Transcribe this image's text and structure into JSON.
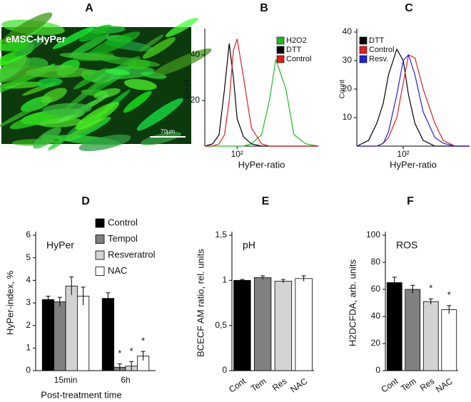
{
  "chart_data": [
    {
      "type": "image",
      "panel": "A",
      "caption": "eMSC-HyPer",
      "scale_bar": "70µm"
    },
    {
      "type": "line",
      "panel": "B",
      "ylabel": "Count",
      "xlabel": "HyPer-ratio",
      "log_x": true,
      "xlim": [
        40,
        1000
      ],
      "ylim": [
        0,
        50
      ],
      "yticks": [
        20,
        40
      ],
      "xticks": [
        {
          "value": 100,
          "label": "10²"
        }
      ],
      "legend": "top-right",
      "x": [
        40,
        50,
        60,
        70,
        80,
        90,
        100,
        120,
        150,
        200,
        250,
        300,
        400,
        500,
        700,
        1000
      ],
      "series": [
        {
          "name": "H2O2",
          "color": "#22bb22",
          "values": [
            0,
            0,
            0,
            0,
            0,
            0,
            0,
            0,
            1,
            5,
            20,
            38,
            25,
            5,
            1,
            0
          ]
        },
        {
          "name": "DTT",
          "color": "#000000",
          "values": [
            0,
            1,
            5,
            25,
            45,
            30,
            12,
            4,
            1,
            0,
            0,
            0,
            0,
            0,
            0,
            0
          ]
        },
        {
          "name": "Control",
          "color": "#e02020",
          "values": [
            0,
            0,
            1,
            5,
            20,
            42,
            47,
            30,
            8,
            1,
            0,
            0,
            0,
            0,
            0,
            0
          ]
        }
      ]
    },
    {
      "type": "line",
      "panel": "C",
      "ylabel": "Count",
      "xlabel": "HyPer-ratio",
      "log_x": true,
      "xlim": [
        20,
        1000
      ],
      "ylim": [
        0,
        40
      ],
      "yticks": [
        10,
        20,
        30,
        40
      ],
      "xticks": [
        {
          "value": 100,
          "label": "10²"
        }
      ],
      "legend": "top-left",
      "x": [
        20,
        30,
        40,
        50,
        60,
        80,
        100,
        120,
        150,
        200,
        300,
        400,
        600,
        1000
      ],
      "series": [
        {
          "name": "DTT",
          "color": "#000000",
          "values": [
            0,
            2,
            8,
            15,
            25,
            34,
            30,
            18,
            8,
            2,
            0,
            0,
            0,
            0
          ]
        },
        {
          "name": "Control",
          "color": "#e02020",
          "values": [
            0,
            0,
            0,
            1,
            3,
            10,
            22,
            32,
            31,
            20,
            8,
            2,
            0,
            0
          ]
        },
        {
          "name": "Resv.",
          "color": "#2020dd",
          "values": [
            0,
            0,
            0,
            1,
            5,
            18,
            30,
            32,
            25,
            12,
            3,
            1,
            0,
            0
          ]
        }
      ]
    },
    {
      "type": "bar",
      "panel": "D",
      "inner_label": "HyPer",
      "ylabel": "HyPer-index, %",
      "xlabel": "Post-treatment time",
      "ylim": [
        0,
        6
      ],
      "yticks": [
        0,
        1,
        2,
        3,
        4,
        5,
        6
      ],
      "categories": [
        "15min",
        "6h"
      ],
      "series": [
        {
          "name": "Control",
          "color": "#000000",
          "values": [
            3.15,
            3.2
          ],
          "errors": [
            0.15,
            0.25
          ],
          "significance": [
            null,
            null
          ]
        },
        {
          "name": "Tempol",
          "color": "#808080",
          "values": [
            3.05,
            0.15
          ],
          "errors": [
            0.2,
            0.15
          ],
          "significance": [
            null,
            "*"
          ]
        },
        {
          "name": "Resveratrol",
          "color": "#d3d3d3",
          "values": [
            3.75,
            0.2
          ],
          "errors": [
            0.4,
            0.2
          ],
          "significance": [
            null,
            "*"
          ]
        },
        {
          "name": "NAC",
          "color": "#ffffff",
          "values": [
            3.3,
            0.65
          ],
          "errors": [
            0.4,
            0.2
          ],
          "significance": [
            null,
            "*"
          ]
        }
      ]
    },
    {
      "type": "bar",
      "panel": "E",
      "inner_label": "pH",
      "ylabel": "BCECF AM ratio, rel. units",
      "ylim": [
        0,
        1.5
      ],
      "yticks": [
        0,
        {
          "value": 0.5,
          "label": "0,5"
        },
        1,
        {
          "value": 1.5,
          "label": "1,5"
        }
      ],
      "categories": [
        "Cont",
        "Tem",
        "Res",
        "NAC"
      ],
      "values": [
        1,
        1.03,
        0.99,
        1.02
      ],
      "errors": [
        0.01,
        0.02,
        0.02,
        0.03
      ],
      "colors": [
        "#000000",
        "#808080",
        "#d3d3d3",
        "#ffffff"
      ],
      "significance": [
        null,
        null,
        null,
        null
      ]
    },
    {
      "type": "bar",
      "panel": "F",
      "inner_label": "ROS",
      "ylabel": "H2DCFDA, arb. units",
      "ylim": [
        0,
        100
      ],
      "yticks": [
        0,
        20,
        40,
        60,
        80,
        100
      ],
      "categories": [
        "Cont",
        "Tem",
        "Res",
        "NAC"
      ],
      "values": [
        65,
        60,
        51,
        45
      ],
      "errors": [
        4,
        3,
        2,
        3
      ],
      "colors": [
        "#000000",
        "#808080",
        "#d3d3d3",
        "#ffffff"
      ],
      "significance": [
        null,
        null,
        "*",
        "*"
      ]
    }
  ]
}
